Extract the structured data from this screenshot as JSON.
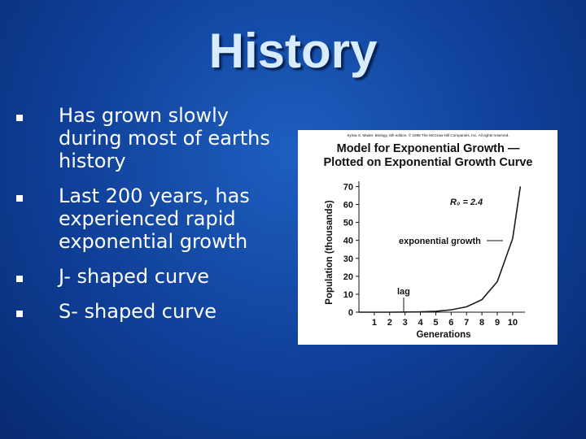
{
  "title": "History",
  "bullets": [
    "Has grown slowly during most of earths history",
    "Last 200 years, has experienced rapid exponential growth",
    "J- shaped curve",
    "S- shaped curve"
  ],
  "figure": {
    "credit": "Sylvia S. Mader, Biology, 6th edition. © 1998 The McGraw-Hill Companies, Inc. All rights reserved.",
    "chart_data": {
      "type": "line",
      "title_lines": [
        "Model for Exponential Growth —",
        "Plotted on Exponential Growth Curve"
      ],
      "y_label": "Population (thousands)",
      "x_label": "Generations",
      "x": [
        0,
        1,
        2,
        3,
        4,
        5,
        6,
        7,
        8,
        9,
        10,
        10.5
      ],
      "series": [
        {
          "name": "exponential growth",
          "color": "#1a1a1a",
          "values": [
            0,
            0,
            0,
            0.1,
            0.2,
            0.5,
            1.3,
            3,
            7,
            17,
            41,
            70
          ]
        }
      ],
      "xlim": [
        0,
        10.8
      ],
      "ylim": [
        0,
        72
      ],
      "xticks": [
        1,
        2,
        3,
        4,
        5,
        6,
        7,
        8,
        9,
        10
      ],
      "yticks": [
        0,
        10,
        20,
        30,
        40,
        50,
        60,
        70
      ],
      "annotations": [
        "R₀ = 2.4",
        "exponential growth",
        "lag"
      ]
    }
  }
}
